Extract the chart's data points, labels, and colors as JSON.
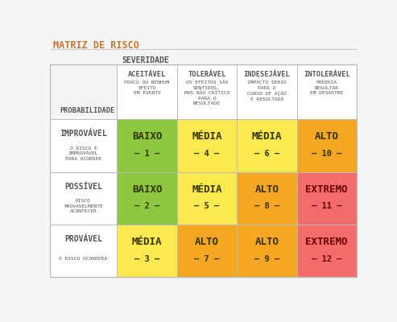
{
  "title": "MATRIZ DE RISCO",
  "severidade_label": "SEVERIDADE",
  "probabilidade_label": "PROBABILIDADE",
  "col_headers": [
    "ACEITÁVEL",
    "TOLERÁVEL",
    "INDESEJÁVEL",
    "INTOLE RÁVEL"
  ],
  "col_headers_display": [
    "ACEITÁVEL",
    "TOLERÁVEL",
    "INDESEJÁVEL",
    "INTOLERÁVEL"
  ],
  "col_subheaders": [
    "POUCO OU NENHUM\nEFEITO\nEM EVENTO",
    "OS EFEITOS SÃO\nSENTIDOS,\nMAS NÃO CRÍTICO\nPARA O\nRESULTADO",
    "IMPACTO SÉRIO\nPARA O\nCURSO DE AÇÃO\nE RESULTADO",
    "PODERIA\nRESULTAR\nEM DESASTRE"
  ],
  "row_headers": [
    "IMPROVÁVEL",
    "POSSÍVEL",
    "PROVÁVEL"
  ],
  "row_subheaders": [
    "O RISCO É\nIMPROVÁVEL\nPARA OCORRER",
    "RISCO\nPROVAVELMENTE\nACONTECER",
    "O RISCO OCORRERÁ"
  ],
  "cell_labels": [
    [
      "BAIXO",
      "MÉDIA",
      "MÉDIA",
      "ALTO"
    ],
    [
      "BAIXO",
      "MÉDIA",
      "ALTO",
      "EXTREMO"
    ],
    [
      "MÉDIA",
      "ALTO",
      "ALTO",
      "EXTREMO"
    ]
  ],
  "cell_numbers": [
    [
      "– 1 –",
      "– 4 –",
      "– 6 –",
      "– 10 –"
    ],
    [
      "– 2 –",
      "– 5 –",
      "– 8 –",
      "– 11 –"
    ],
    [
      "– 3 –",
      "– 7 –",
      "– 9 –",
      "– 12 –"
    ]
  ],
  "cell_colors": [
    [
      "#8dc63f",
      "#fce94f",
      "#fce94f",
      "#f5a623"
    ],
    [
      "#8dc63f",
      "#fce94f",
      "#f5a623",
      "#f26c6c"
    ],
    [
      "#fce94f",
      "#f5a623",
      "#f5a623",
      "#f26c6c"
    ]
  ],
  "bg_color": "#f5f5f5",
  "border_color": "#bbbbbb",
  "title_color": "#c87832",
  "label_color": "#555555",
  "cell_dark_text": "#333300",
  "cell_red_text": "#6b0000"
}
